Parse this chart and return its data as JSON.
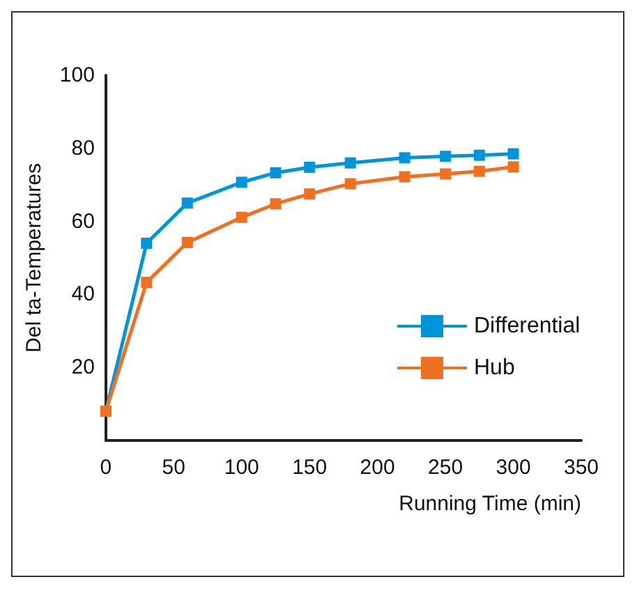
{
  "chart_data": {
    "type": "line",
    "xlabel": "Running Time (min)",
    "ylabel": "Del ta-Temperatures",
    "x": [
      0,
      30,
      60,
      100,
      125,
      150,
      180,
      220,
      250,
      275,
      300
    ],
    "series": [
      {
        "name": "Differential",
        "color": "#0095d9",
        "values": [
          8,
          54,
          65,
          70.7,
          73.3,
          74.8,
          76,
          77.4,
          77.8,
          78.1,
          78.5
        ]
      },
      {
        "name": "Hub",
        "color": "#f07022",
        "values": [
          8,
          43.3,
          54.2,
          61.1,
          64.8,
          67.5,
          70.3,
          72.2,
          73,
          73.7,
          74.9
        ]
      }
    ],
    "xlim": [
      0,
      350
    ],
    "xticks": [
      0,
      50,
      100,
      150,
      200,
      250,
      300,
      350
    ],
    "ylim": [
      0,
      100
    ],
    "yticks": [
      20,
      40,
      60,
      80,
      100
    ],
    "grid": false,
    "legend": "right",
    "marker": "square",
    "line_style": "solid"
  }
}
